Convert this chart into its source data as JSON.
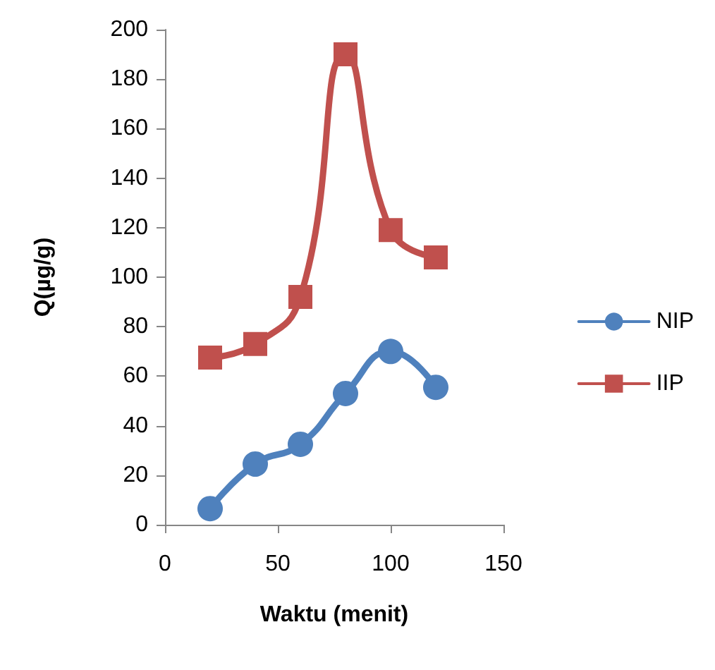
{
  "chart_data": {
    "type": "line",
    "xlabel": "Waktu (menit)",
    "ylabel": "Q(µg/g)",
    "x": [
      20,
      40,
      60,
      80,
      100,
      120
    ],
    "series": [
      {
        "name": "NIP",
        "color": "#4f81bd",
        "marker": "circle",
        "values": [
          6.5,
          24.5,
          32.5,
          53,
          70,
          55.5
        ]
      },
      {
        "name": "IIP",
        "color": "#c0504d",
        "marker": "square",
        "values": [
          67.5,
          73,
          92,
          190,
          119,
          108
        ]
      }
    ],
    "xlim": [
      0,
      150
    ],
    "xticks": [
      0,
      50,
      100,
      150
    ],
    "ylim": [
      0,
      200
    ],
    "yticks": [
      0,
      20,
      40,
      60,
      80,
      100,
      120,
      140,
      160,
      180,
      200
    ],
    "grid": false,
    "legend": "right"
  }
}
